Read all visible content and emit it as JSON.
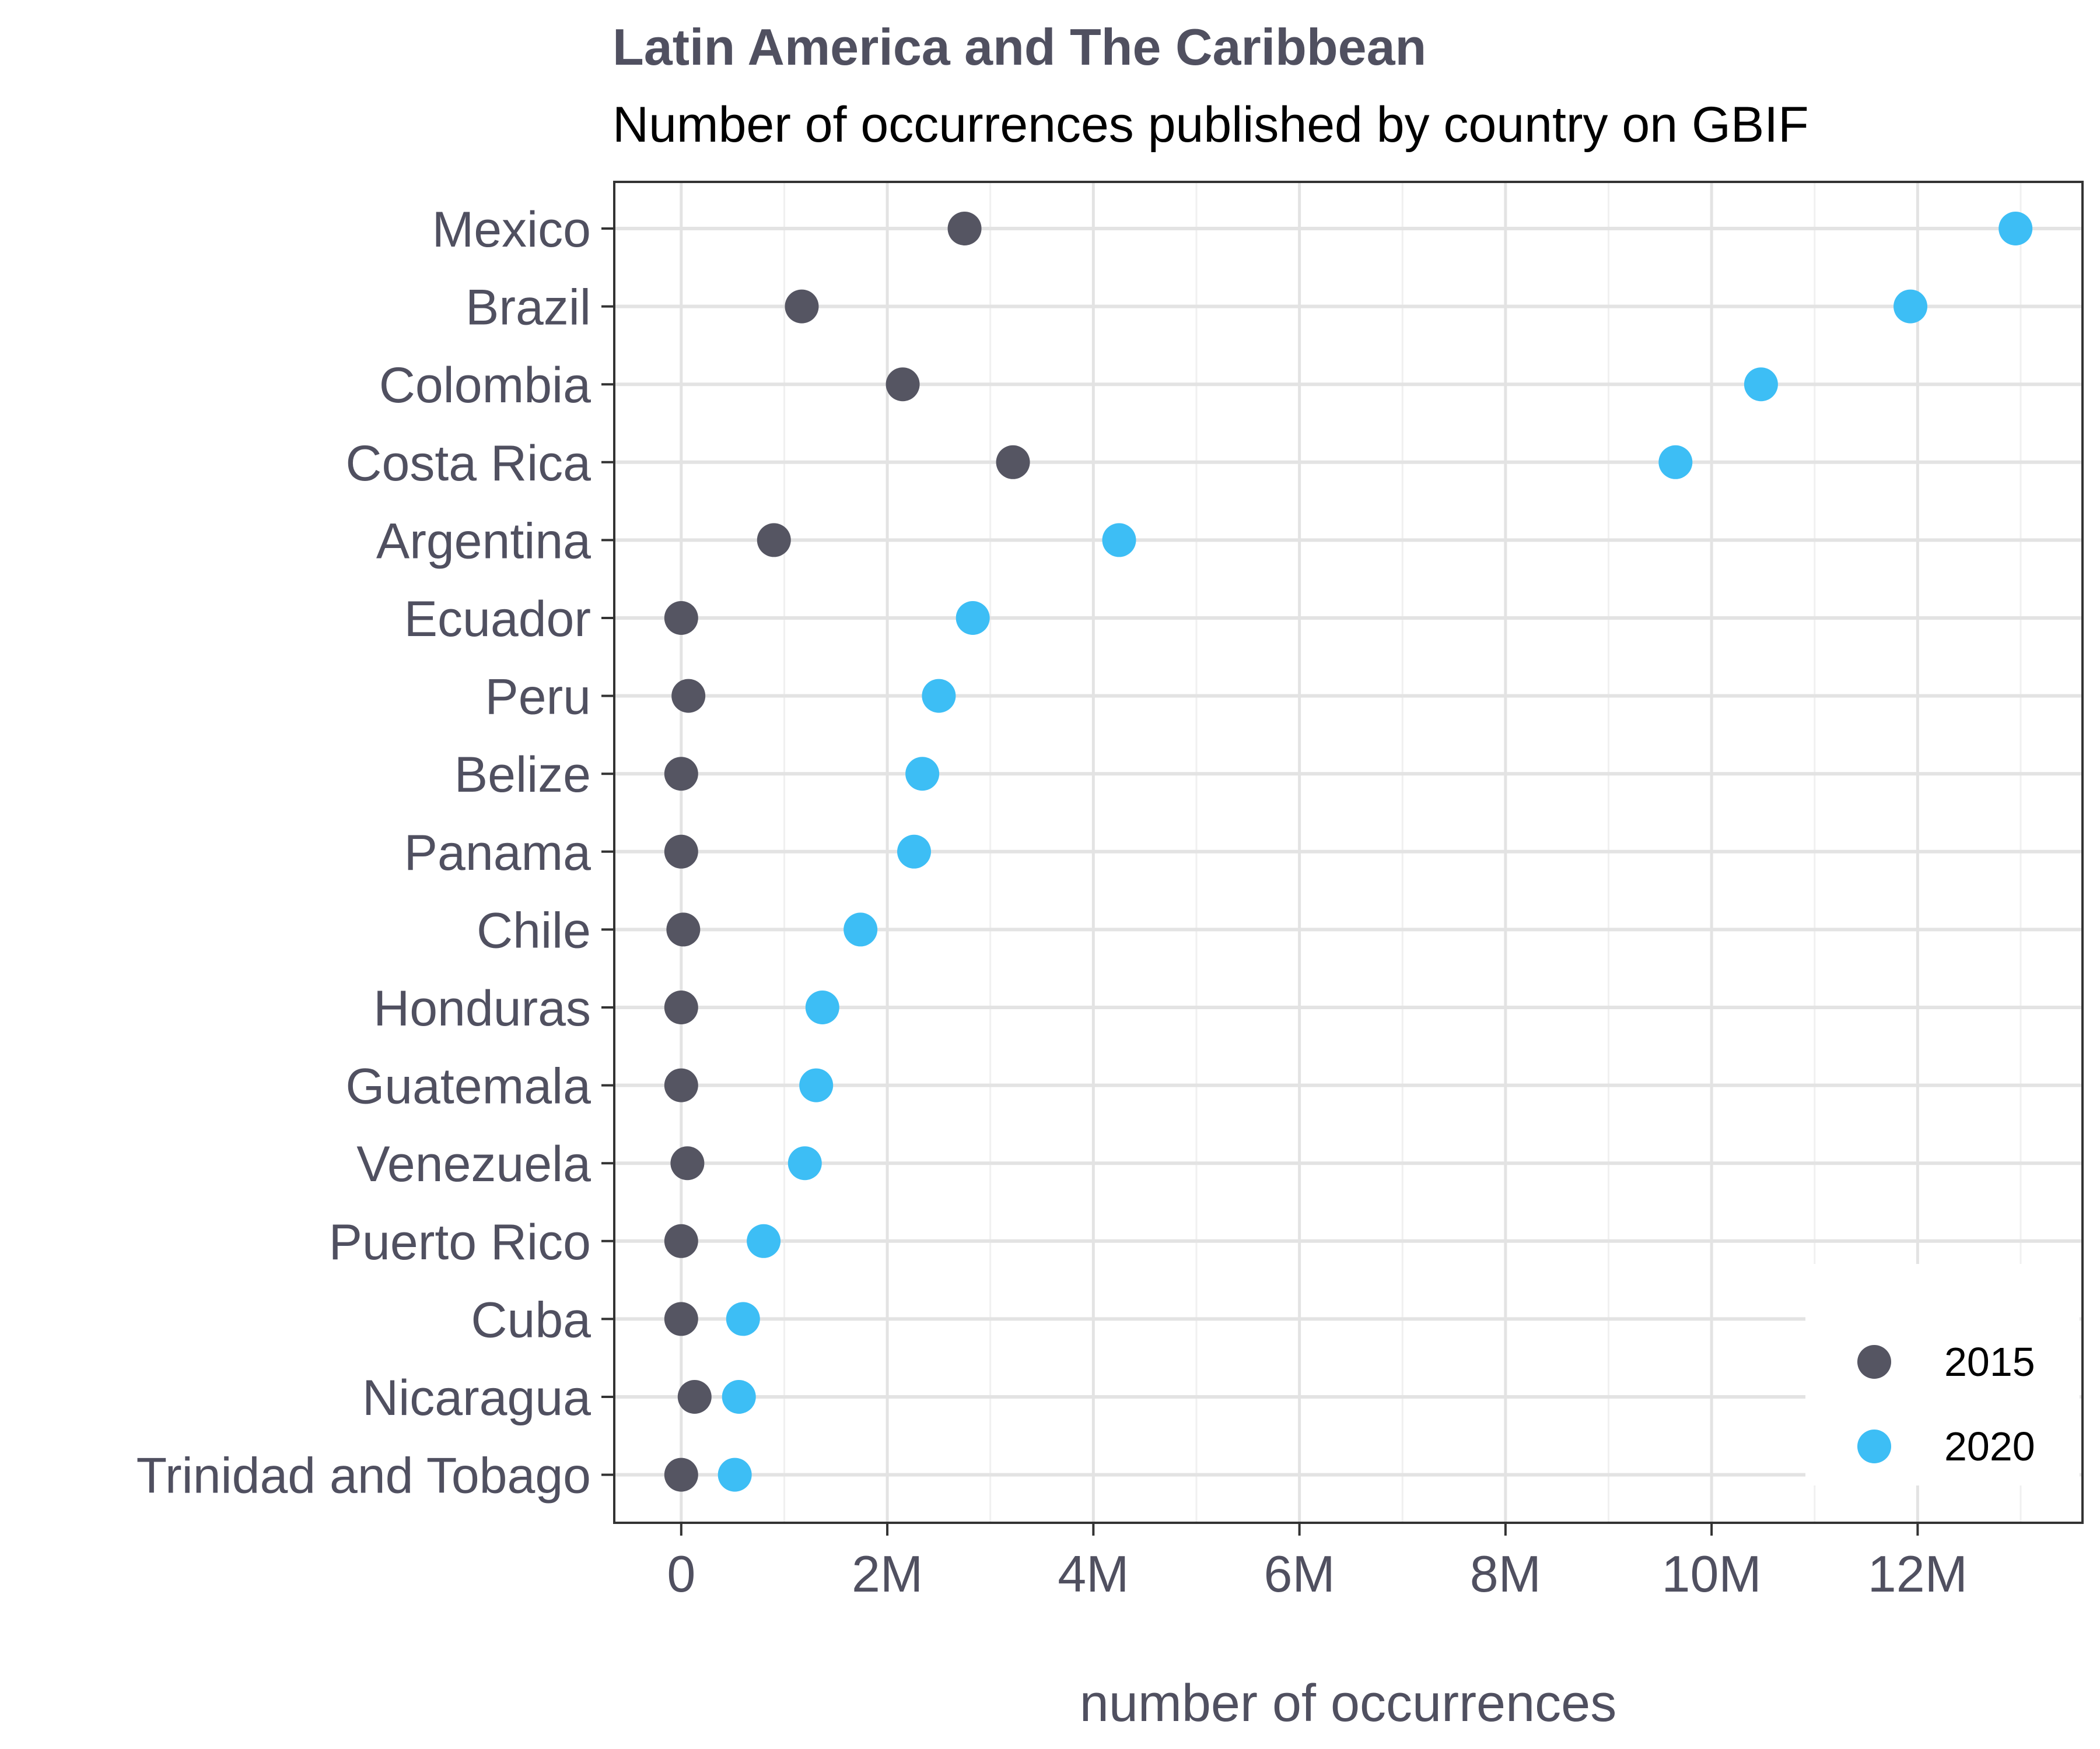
{
  "chart_data": {
    "type": "scatter",
    "title": "Latin America and The Caribbean",
    "subtitle": "Number of occurrences published by country on GBIF",
    "xlabel": "number of occurrences",
    "ylabel": "",
    "xlim": [
      -650000,
      13600000
    ],
    "xticks": [
      0,
      2000000,
      4000000,
      6000000,
      8000000,
      10000000,
      12000000
    ],
    "xtick_labels": [
      "0",
      "2M",
      "4M",
      "6M",
      "8M",
      "10M",
      "12M"
    ],
    "categories": [
      "Mexico",
      "Brazil",
      "Colombia",
      "Costa Rica",
      "Argentina",
      "Ecuador",
      "Peru",
      "Belize",
      "Panama",
      "Chile",
      "Honduras",
      "Guatemala",
      "Venezuela",
      "Puerto Rico",
      "Cuba",
      "Nicaragua",
      "Trinidad and Tobago"
    ],
    "series": [
      {
        "name": "2015",
        "color": "#555562",
        "values": [
          2750000,
          1170000,
          2150000,
          3220000,
          900000,
          0,
          70000,
          0,
          0,
          20000,
          0,
          0,
          60000,
          0,
          0,
          130000,
          0
        ]
      },
      {
        "name": "2020",
        "color": "#3DBEF5",
        "values": [
          12950000,
          11930000,
          10480000,
          9650000,
          4250000,
          2830000,
          2500000,
          2340000,
          2260000,
          1740000,
          1370000,
          1310000,
          1200000,
          800000,
          600000,
          560000,
          520000
        ]
      }
    ],
    "grid": true,
    "legend_position": "bottom-right"
  }
}
